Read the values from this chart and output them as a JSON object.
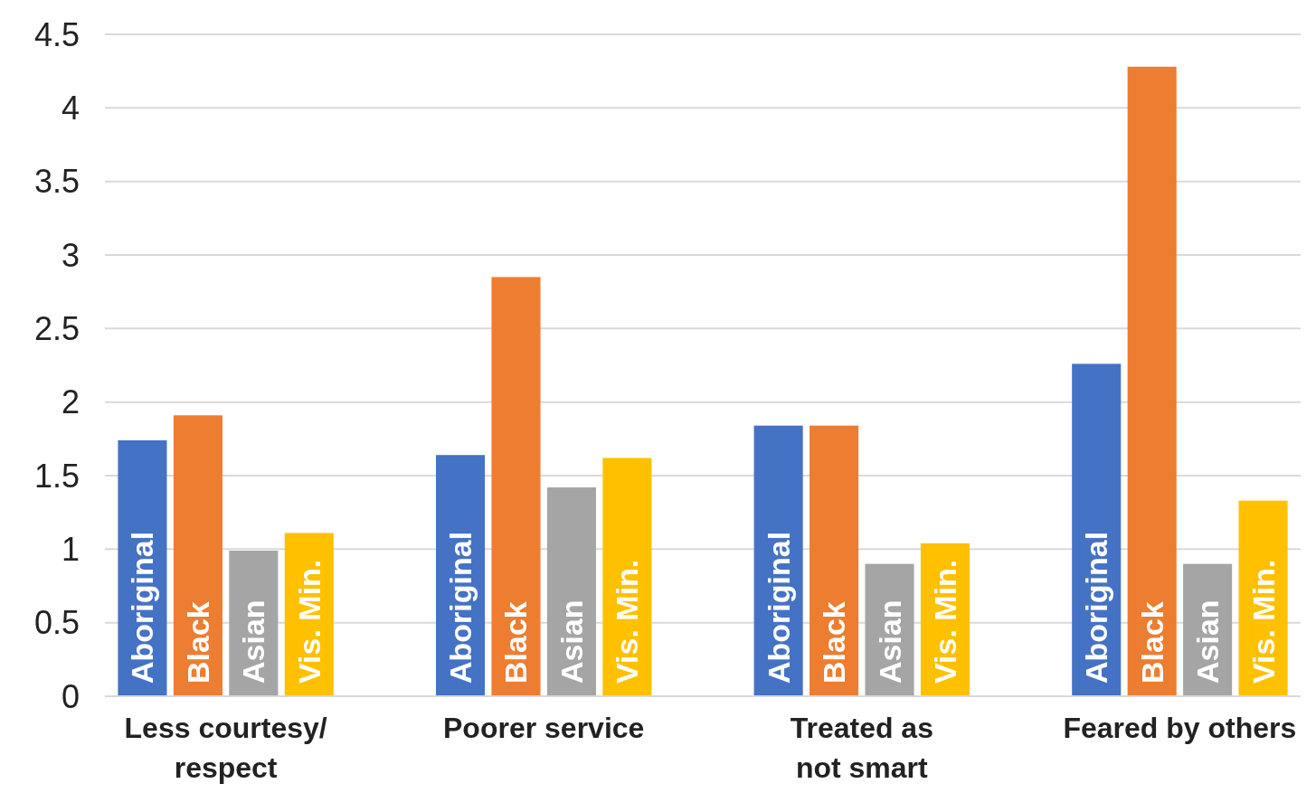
{
  "chart_data": {
    "type": "bar",
    "categories": [
      "Less courtesy/ respect",
      "Poorer service",
      "Treated as not smart",
      "Feared by others"
    ],
    "series": [
      {
        "name": "Aboriginal",
        "color": "#4472c4",
        "values": [
          1.74,
          1.64,
          1.84,
          2.26
        ]
      },
      {
        "name": "Black",
        "color": "#ed7d31",
        "values": [
          1.91,
          2.85,
          1.84,
          4.28
        ]
      },
      {
        "name": "Asian",
        "color": "#a5a5a5",
        "values": [
          0.99,
          1.42,
          0.9,
          0.9
        ]
      },
      {
        "name": "Vis. Min.",
        "color": "#ffc000",
        "values": [
          1.11,
          1.62,
          1.04,
          1.33
        ]
      }
    ],
    "ylim": [
      0,
      4.5
    ],
    "yticks": [
      0,
      0.5,
      1,
      1.5,
      2,
      2.5,
      3,
      3.5,
      4,
      4.5
    ],
    "grid": "y"
  }
}
